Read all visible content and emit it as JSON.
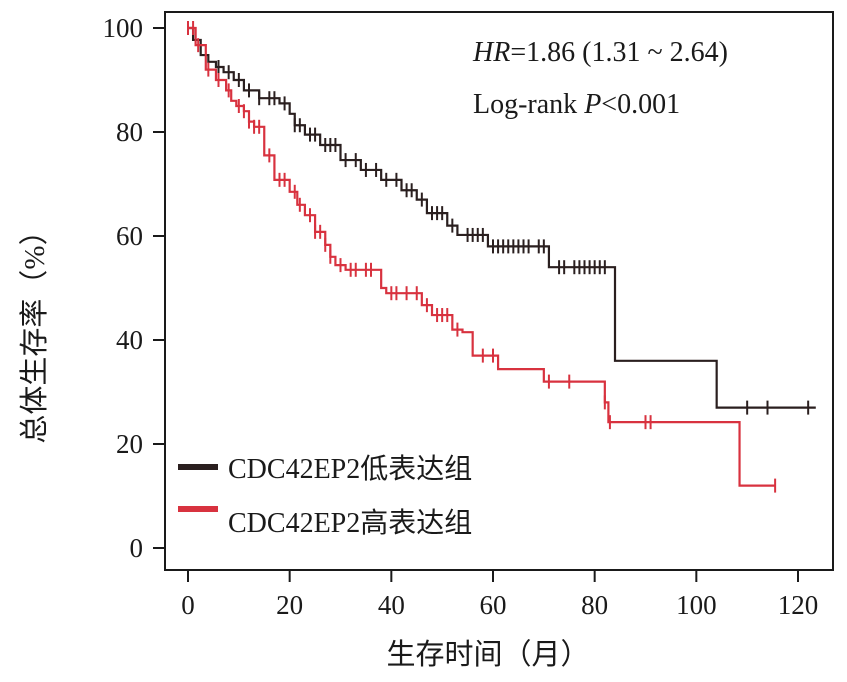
{
  "chart_data": {
    "type": "line",
    "subtype": "kaplan-meier",
    "title": "",
    "xlabel": "生存时间（月）",
    "ylabel": "总体生存率（%）",
    "xlim": [
      -4,
      127
    ],
    "ylim": [
      -4,
      103
    ],
    "x_ticks": [
      0,
      20,
      40,
      60,
      80,
      100,
      120
    ],
    "y_ticks": [
      0,
      20,
      40,
      60,
      80,
      100
    ],
    "x_tick_labels": [
      "0",
      "20",
      "40",
      "60",
      "80",
      "100",
      "120"
    ],
    "y_tick_labels": [
      "0",
      "20",
      "40",
      "60",
      "80",
      "100"
    ],
    "grid": false,
    "legend_position": "bottom-left",
    "annotations": {
      "hr_label": "HR",
      "hr_value": "=1.86 (1.31 ~ 2.64)",
      "logrank_label": "Log-rank ",
      "p_label": "P",
      "p_value": "<0.001"
    },
    "series": [
      {
        "name": "CDC42EP2低表达组",
        "color": "#2a1f1f",
        "steps": [
          [
            0,
            100
          ],
          [
            1,
            97.7
          ],
          [
            2.5,
            94.8
          ],
          [
            4,
            93.5
          ],
          [
            5.5,
            92.5
          ],
          [
            7,
            91.5
          ],
          [
            9,
            90
          ],
          [
            11,
            88
          ],
          [
            14,
            86.5
          ],
          [
            18,
            85.5
          ],
          [
            20,
            83.5
          ],
          [
            21,
            81.3
          ],
          [
            23,
            79.5
          ],
          [
            26,
            77.5
          ],
          [
            30,
            74.6
          ],
          [
            34,
            72.7
          ],
          [
            38,
            70.8
          ],
          [
            42,
            68.8
          ],
          [
            45,
            67
          ],
          [
            47,
            64.4
          ],
          [
            51,
            62
          ],
          [
            53,
            60.2
          ],
          [
            59,
            58
          ],
          [
            71,
            54
          ],
          [
            84,
            36
          ],
          [
            104,
            27
          ],
          [
            123.5,
            27
          ]
        ],
        "censor_times": [
          6,
          8,
          10,
          12,
          14,
          16,
          17,
          19,
          21,
          22,
          24,
          25,
          27,
          28,
          29,
          31,
          33,
          35,
          37,
          39,
          41,
          43,
          44,
          46,
          48,
          49,
          50,
          52,
          55,
          56,
          57,
          58,
          60,
          61,
          62,
          63,
          64,
          65,
          66,
          67,
          69,
          70,
          73,
          74,
          76,
          77,
          78,
          79,
          80,
          81,
          82,
          110,
          114,
          122
        ]
      },
      {
        "name": "CDC42EP2高表达组",
        "color": "#d8323f",
        "steps": [
          [
            0,
            100
          ],
          [
            1.5,
            96.7
          ],
          [
            3.5,
            92
          ],
          [
            5.5,
            90
          ],
          [
            7.5,
            88
          ],
          [
            8.5,
            86
          ],
          [
            9.5,
            85
          ],
          [
            11,
            84
          ],
          [
            12,
            82
          ],
          [
            13,
            81
          ],
          [
            15,
            75.5
          ],
          [
            17,
            70.8
          ],
          [
            20,
            68.5
          ],
          [
            21.5,
            66
          ],
          [
            23,
            64
          ],
          [
            25,
            60.8
          ],
          [
            27,
            58.3
          ],
          [
            28,
            56
          ],
          [
            29,
            54.4
          ],
          [
            31,
            53.5
          ],
          [
            38,
            50
          ],
          [
            39,
            49
          ],
          [
            46,
            46.7
          ],
          [
            48,
            44.8
          ],
          [
            52,
            42
          ],
          [
            54,
            41.5
          ],
          [
            56,
            37
          ],
          [
            61,
            34.4
          ],
          [
            70,
            32
          ],
          [
            82,
            28
          ],
          [
            82.7,
            24.2
          ],
          [
            108.5,
            12
          ],
          [
            115.5,
            12
          ]
        ],
        "censor_times": [
          0,
          1,
          2,
          4,
          6,
          8,
          10,
          11,
          12,
          13,
          14,
          16,
          18,
          19,
          21,
          22,
          24,
          25,
          26,
          27,
          28,
          30,
          32,
          33,
          35,
          36,
          40,
          41,
          43,
          45,
          47,
          49,
          50,
          51,
          53,
          58,
          60,
          71,
          75,
          82,
          83,
          90,
          91,
          115.5
        ]
      }
    ]
  }
}
